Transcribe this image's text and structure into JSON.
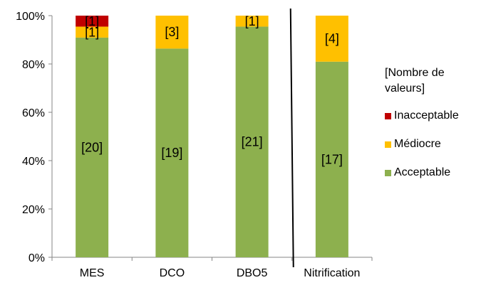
{
  "chart_data": {
    "type": "bar",
    "stacked": true,
    "percent_scale": true,
    "categories": [
      "MES",
      "DCO",
      "DBO5",
      "Nitrification"
    ],
    "series": [
      {
        "name": "Acceptable",
        "color": "#8DB04E",
        "counts": [
          20,
          19,
          21,
          17
        ],
        "labels": [
          "[20]",
          "[19]",
          "[21]",
          "[17]"
        ]
      },
      {
        "name": "Médiocre",
        "color": "#FFC000",
        "counts": [
          1,
          3,
          1,
          4
        ],
        "labels": [
          "[1]",
          "[3]",
          "[1]",
          "[4]"
        ]
      },
      {
        "name": "Inacceptable",
        "color": "#C00000",
        "counts": [
          1,
          0,
          0,
          0
        ],
        "labels": [
          "[1]",
          "",
          "",
          ""
        ]
      }
    ],
    "ylim": [
      0,
      100
    ],
    "yticks": [
      "0%",
      "20%",
      "40%",
      "60%",
      "80%",
      "100%"
    ],
    "legend_title": "[Nombre de valeurs]",
    "legend_position": "right",
    "grid": false,
    "separator_after_category": "DBO5"
  }
}
